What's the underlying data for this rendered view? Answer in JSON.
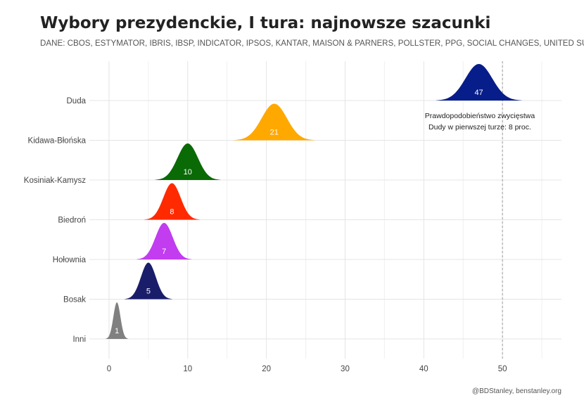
{
  "title": "Wybory prezydenckie, I tura: najnowsze szacunki",
  "subtitle": "DANE: CBOS, ESTYMATOR, IBRIS, IBSP, INDICATOR, IPSOS, KANTAR, MAISON & PARNERS, POLLSTER, PPG, SOCIAL CHANGES, UNITED SURVEY",
  "caption": "@BDStanley, benstanley.org",
  "chart_data": {
    "type": "area",
    "subtype": "ridgeline-density",
    "categories": [
      "Duda",
      "Kidawa-Błońska",
      "Kosiniak-Kamysz",
      "Biedroń",
      "Hołownia",
      "Bosak",
      "Inni"
    ],
    "series": [
      {
        "name": "Duda",
        "center": 47,
        "label": "47",
        "spread": 1.7,
        "color": "#071d8a"
      },
      {
        "name": "Kidawa-Błońska",
        "center": 21,
        "label": "21",
        "spread": 1.6,
        "color": "#ffa800"
      },
      {
        "name": "Kosiniak-Kamysz",
        "center": 10,
        "label": "10",
        "spread": 1.3,
        "color": "#0a6a06"
      },
      {
        "name": "Biedroń",
        "center": 8,
        "label": "8",
        "spread": 1.1,
        "color": "#ff2a00"
      },
      {
        "name": "Hołownia",
        "center": 7,
        "label": "7",
        "spread": 1.1,
        "color": "#c23cf0"
      },
      {
        "name": "Bosak",
        "center": 5,
        "label": "5",
        "spread": 0.95,
        "color": "#1a1d6a"
      },
      {
        "name": "Inni",
        "center": 1,
        "label": "1",
        "spread": 0.45,
        "color": "#808080"
      }
    ],
    "x_ticks": [
      0,
      10,
      20,
      30,
      40,
      50
    ],
    "xlim": [
      -2.5,
      57.5
    ],
    "reference_line": 50,
    "annotation": [
      "Prawdopodobieństwo zwycięstwa",
      "Dudy w pierwszej turze: 8 proc."
    ],
    "grid": true,
    "legend": "none",
    "xlabel": "",
    "ylabel": ""
  }
}
